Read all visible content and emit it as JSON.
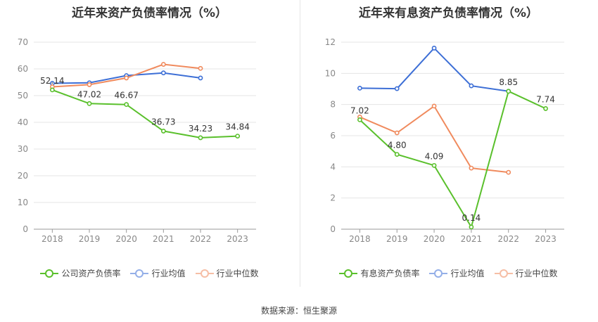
{
  "source": "数据来源：恒生聚源",
  "chart_data": [
    {
      "type": "line",
      "title": "近年来资产负债率情况（%）",
      "categories": [
        "2018",
        "2019",
        "2020",
        "2021",
        "2022",
        "2023"
      ],
      "ylim": [
        0,
        70
      ],
      "yticks": [
        0,
        10,
        20,
        30,
        40,
        50,
        60,
        70
      ],
      "grid": true,
      "legend_placement": "bottom",
      "series": [
        {
          "name": "公司资产负债率",
          "color": "#5ac02c",
          "values": [
            52.14,
            47.02,
            46.67,
            36.73,
            34.23,
            34.84
          ],
          "labels": [
            "52.14",
            "47.02",
            "46.67",
            "36.73",
            "34.23",
            "34.84"
          ],
          "legend_faded": false
        },
        {
          "name": "行业均值",
          "color": "#3d6fd6",
          "values": [
            54.6,
            54.8,
            57.5,
            58.5,
            56.6,
            null
          ],
          "labels": [],
          "legend_faded": true
        },
        {
          "name": "行业中位数",
          "color": "#f08a5d",
          "values": [
            53.3,
            54.1,
            56.6,
            61.7,
            60.2,
            null
          ],
          "labels": [],
          "legend_faded": true
        }
      ]
    },
    {
      "type": "line",
      "title": "近年来有息资产负债率情况（%）",
      "categories": [
        "2018",
        "2019",
        "2020",
        "2021",
        "2022",
        "2023"
      ],
      "ylim": [
        0,
        12
      ],
      "yticks": [
        0,
        2,
        4,
        6,
        8,
        10,
        12
      ],
      "grid": true,
      "legend_placement": "bottom",
      "series": [
        {
          "name": "有息资产负债率",
          "color": "#5ac02c",
          "values": [
            7.02,
            4.8,
            4.09,
            0.14,
            8.85,
            7.74
          ],
          "labels": [
            "7.02",
            "4.80",
            "4.09",
            "0.14",
            "8.85",
            "7.74"
          ],
          "legend_faded": false
        },
        {
          "name": "行业均值",
          "color": "#3d6fd6",
          "values": [
            9.05,
            9.02,
            11.62,
            9.2,
            8.85,
            null
          ],
          "labels": [],
          "legend_faded": true
        },
        {
          "name": "行业中位数",
          "color": "#f08a5d",
          "values": [
            7.2,
            6.18,
            7.9,
            3.92,
            3.65,
            null
          ],
          "labels": [],
          "legend_faded": true
        }
      ]
    }
  ]
}
